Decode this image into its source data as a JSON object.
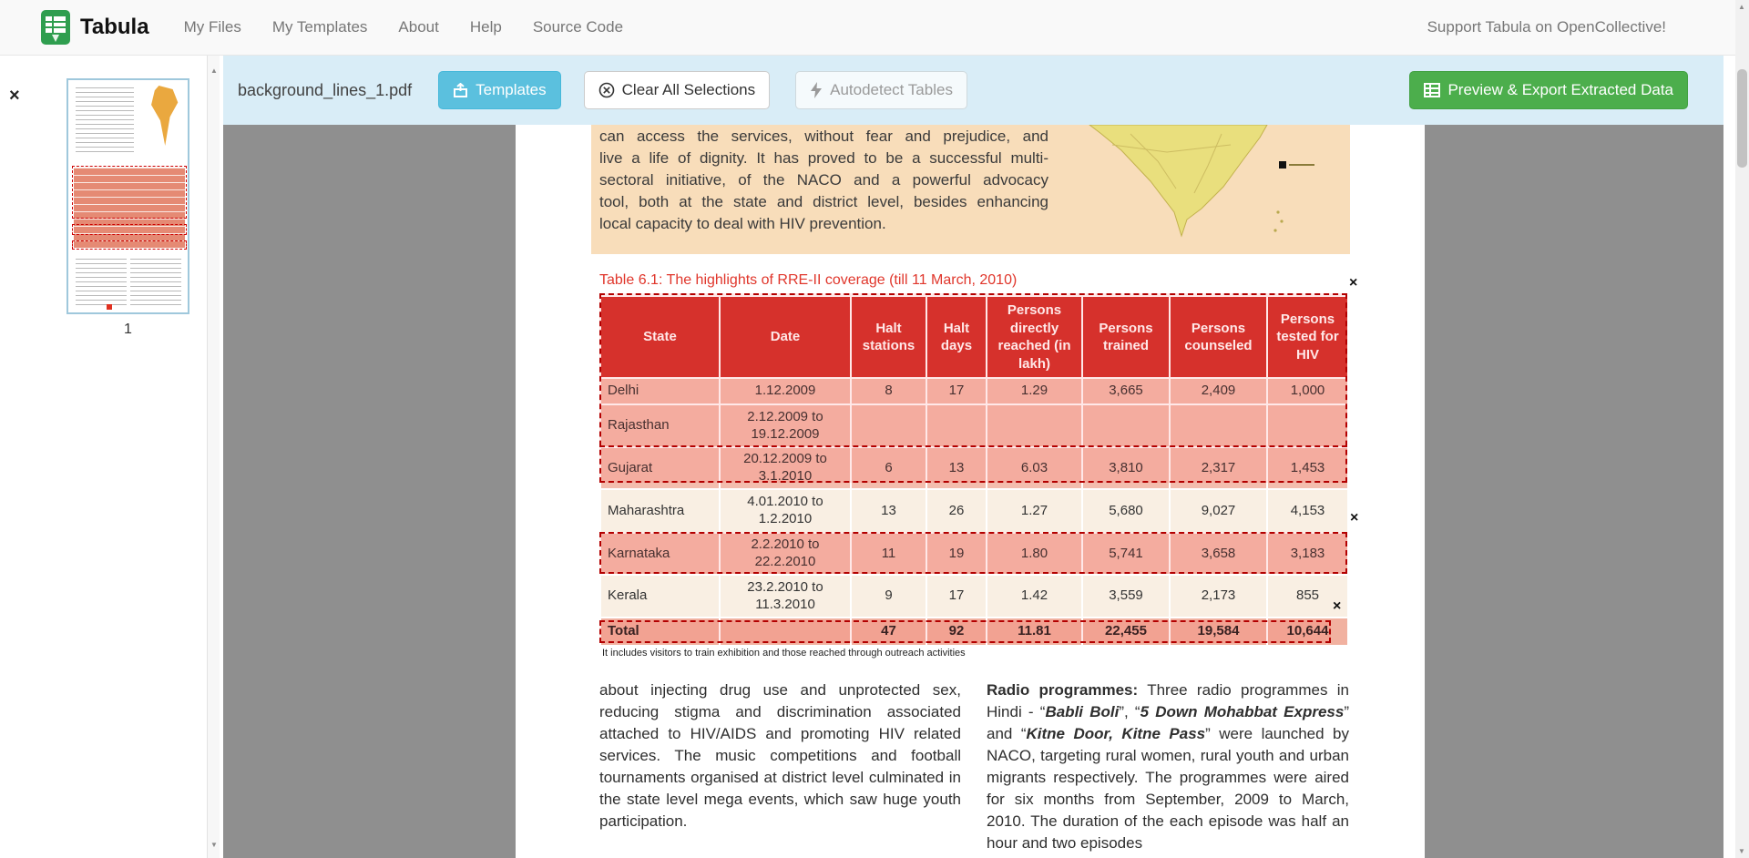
{
  "navbar": {
    "brand": "Tabula",
    "links": [
      "My Files",
      "My Templates",
      "About",
      "Help",
      "Source Code"
    ],
    "support_text": "Support Tabula on OpenCollective!"
  },
  "toolbar": {
    "filename": "background_lines_1.pdf",
    "templates_label": "Templates",
    "clear_label": "Clear All Selections",
    "autodetect_label": "Autodetect Tables",
    "export_label": "Preview & Export Extracted Data"
  },
  "sidebar": {
    "page_number": "1"
  },
  "icons": {
    "close": "×",
    "scroll_up": "▲",
    "scroll_down": "▼"
  },
  "colors": {
    "toolbar_bg": "#d9edf7",
    "templates_btn": "#5bc0de",
    "export_btn": "#4cae4c",
    "table_header_red": "#d2342e",
    "selection_red": "#b30000"
  },
  "pdf": {
    "intro_lines": [
      "can access the services, without fear and prejudice, and",
      "live a life of dignity. It has proved to be a successful multi-",
      "sectoral initiative, of the NACO and a powerful advocacy",
      "tool, both at the state and district level, besides enhancing",
      "local capacity to deal with HIV prevention."
    ],
    "table_title": "Table 6.1: The highlights of RRE-II coverage (till 11 March, 2010)",
    "footnote": "It includes visitors to train exhibition and those reached through outreach activities",
    "left_column": "about injecting drug use and unprotected sex, reducing stigma and discrimination associated attached to HIV/AIDS and promoting HIV related services. The music competitions and football tournaments organised at district level culminated in the state level mega events, which saw huge youth participation.",
    "right_column": {
      "lead": "Radio programmes:",
      "seg1": " Three radio programmes in Hindi - “",
      "title1": "Babli Boli",
      "seg2": "”, “",
      "title2": "5 Down Mohabbat Express",
      "seg3": "” and “",
      "title3": "Kitne Door, Kitne Pass",
      "seg4": "” were launched by NACO, targeting rural women, rural youth and urban migrants respectively. The programmes were aired for six months from September, 2009 to March, 2010. The duration of the each episode was half an hour and two episodes"
    }
  },
  "table": {
    "headers": [
      "State",
      "Date",
      "Halt stations",
      "Halt days",
      "Persons directly reached (in lakh)",
      "Persons trained",
      "Persons counseled",
      "Persons tested for HIV"
    ],
    "rows": [
      [
        "Delhi",
        "1.12.2009",
        "8",
        "17",
        "1.29",
        "3,665",
        "2,409",
        "1,000"
      ],
      [
        "Rajasthan",
        "2.12.2009 to 19.12.2009",
        "",
        "",
        "",
        "",
        "",
        ""
      ],
      [
        "Gujarat",
        "20.12.2009 to 3.1.2010",
        "6",
        "13",
        "6.03",
        "3,810",
        "2,317",
        "1,453"
      ],
      [
        "Maharashtra",
        "4.01.2010 to 1.2.2010",
        "13",
        "26",
        "1.27",
        "5,680",
        "9,027",
        "4,153"
      ],
      [
        "Karnataka",
        "2.2.2010 to 22.2.2010",
        "11",
        "19",
        "1.80",
        "5,741",
        "3,658",
        "3,183"
      ],
      [
        "Kerala",
        "23.2.2010 to 11.3.2010",
        "9",
        "17",
        "1.42",
        "3,559",
        "2,173",
        "855"
      ],
      [
        "Total",
        "",
        "47",
        "92",
        "11.81",
        "22,455",
        "19,584",
        "10,644"
      ]
    ]
  }
}
